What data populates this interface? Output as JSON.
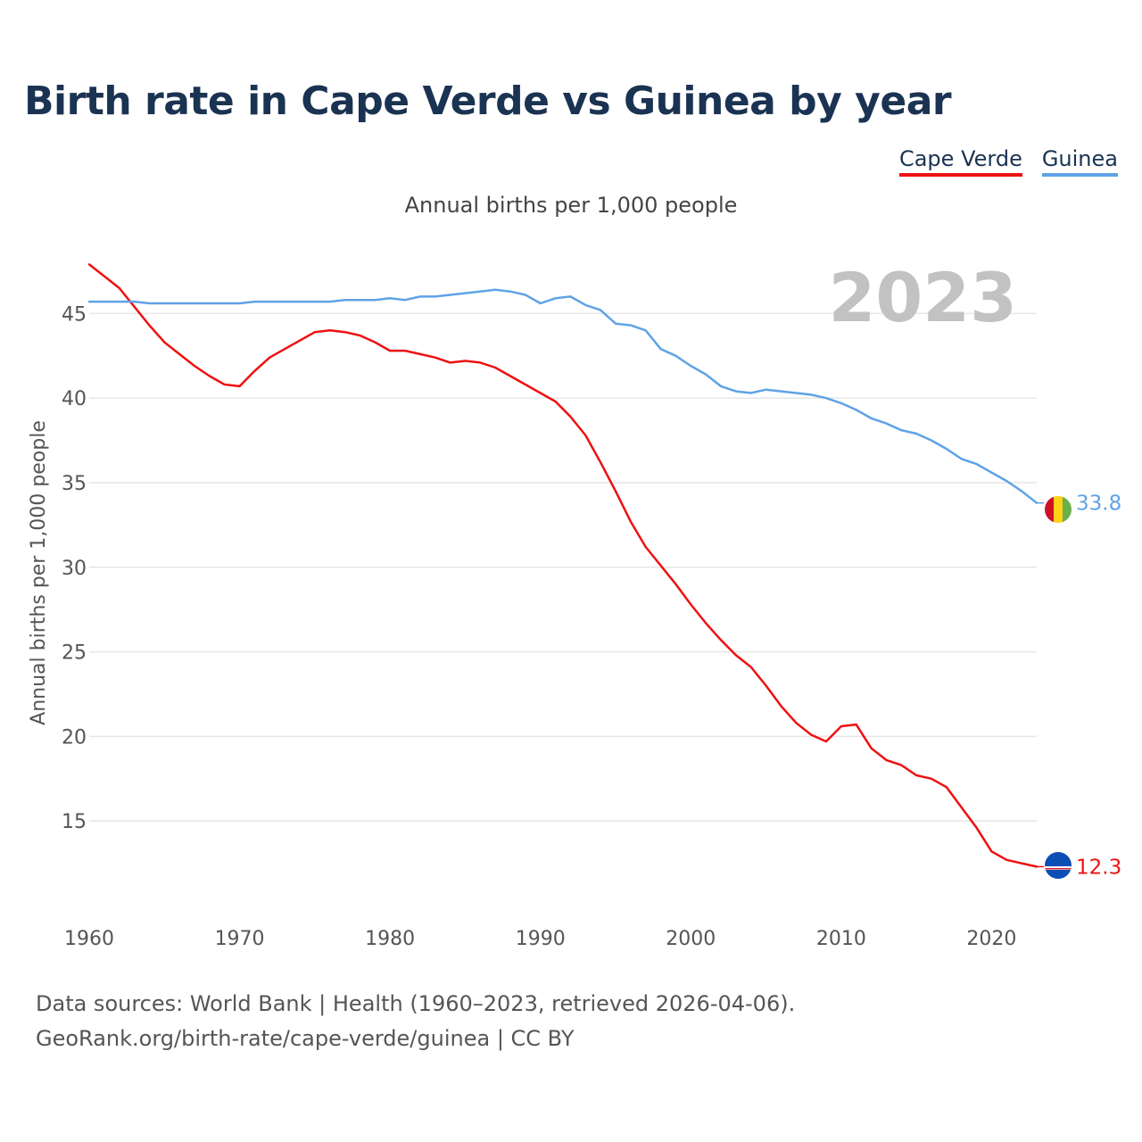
{
  "title": "Birth rate in Cape Verde vs Guinea by year",
  "subtitle": "Annual births per 1,000 people",
  "legend": [
    {
      "label": "Cape Verde",
      "color": "#ee1111"
    },
    {
      "label": "Guinea",
      "color": "#5fa3e6"
    }
  ],
  "footer": {
    "line1": "Data sources: World Bank | Health (1960–2023, retrieved 2026-04-06).",
    "line2": "GeoRank.org/birth-rate/cape-verde/guinea | CC BY"
  },
  "chart_data": {
    "type": "line",
    "title": "Birth rate in Cape Verde vs Guinea by year",
    "xlabel": "",
    "ylabel": "Annual births per 1,000 people",
    "year_label": "2023",
    "xlim": [
      1960,
      2023
    ],
    "ylim": [
      10,
      48.5
    ],
    "xticks": [
      1960,
      1970,
      1980,
      1990,
      2000,
      2010,
      2020
    ],
    "yticks": [
      15,
      20,
      25,
      30,
      35,
      40,
      45
    ],
    "x": [
      1960,
      1961,
      1962,
      1963,
      1964,
      1965,
      1966,
      1967,
      1968,
      1969,
      1970,
      1971,
      1972,
      1973,
      1974,
      1975,
      1976,
      1977,
      1978,
      1979,
      1980,
      1981,
      1982,
      1983,
      1984,
      1985,
      1986,
      1987,
      1988,
      1989,
      1990,
      1991,
      1992,
      1993,
      1994,
      1995,
      1996,
      1997,
      1998,
      1999,
      2000,
      2001,
      2002,
      2003,
      2004,
      2005,
      2006,
      2007,
      2008,
      2009,
      2010,
      2011,
      2012,
      2013,
      2014,
      2015,
      2016,
      2017,
      2018,
      2019,
      2020,
      2021,
      2022,
      2023
    ],
    "series": [
      {
        "name": "Cape Verde",
        "color": "#ee1111",
        "end_label": "12.3",
        "values": [
          47.9,
          47.2,
          46.5,
          45.4,
          44.3,
          43.3,
          42.6,
          41.9,
          41.3,
          40.8,
          40.7,
          41.6,
          42.4,
          42.9,
          43.4,
          43.9,
          44.0,
          43.9,
          43.7,
          43.3,
          42.8,
          42.8,
          42.6,
          42.4,
          42.1,
          42.2,
          42.1,
          41.8,
          41.3,
          40.8,
          40.3,
          39.8,
          38.9,
          37.8,
          36.2,
          34.5,
          32.7,
          31.2,
          30.1,
          29.0,
          27.8,
          26.7,
          25.7,
          24.8,
          24.1,
          23.0,
          21.8,
          20.8,
          20.1,
          19.7,
          20.6,
          20.7,
          19.3,
          18.6,
          18.3,
          17.7,
          17.5,
          17.0,
          15.8,
          14.6,
          13.2,
          12.7,
          12.5,
          12.3
        ]
      },
      {
        "name": "Guinea",
        "color": "#5fa3e6",
        "end_label": "33.8",
        "values": [
          45.7,
          45.7,
          45.7,
          45.7,
          45.6,
          45.6,
          45.6,
          45.6,
          45.6,
          45.6,
          45.6,
          45.7,
          45.7,
          45.7,
          45.7,
          45.7,
          45.7,
          45.8,
          45.8,
          45.8,
          45.9,
          45.8,
          46.0,
          46.0,
          46.1,
          46.2,
          46.3,
          46.4,
          46.3,
          46.1,
          45.6,
          45.9,
          46.0,
          45.5,
          45.2,
          44.4,
          44.3,
          44.0,
          42.9,
          42.5,
          41.9,
          41.4,
          40.7,
          40.4,
          40.3,
          40.5,
          40.4,
          40.3,
          40.2,
          40.0,
          39.7,
          39.3,
          38.8,
          38.5,
          38.1,
          37.9,
          37.5,
          37.0,
          36.4,
          36.1,
          35.6,
          35.1,
          34.5,
          33.8
        ]
      }
    ]
  }
}
